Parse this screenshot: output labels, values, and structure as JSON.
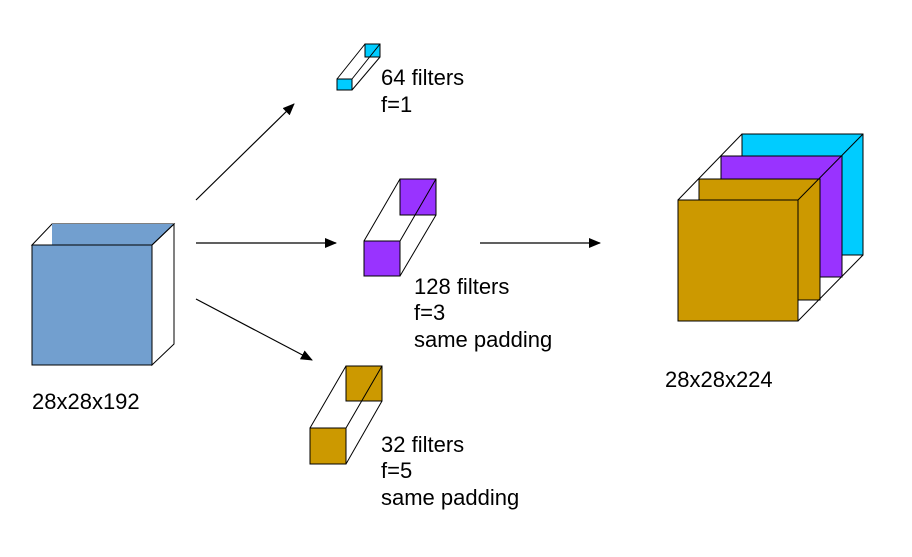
{
  "colors": {
    "input_block": "#729fcf",
    "conv1x1": "#00ccff",
    "conv3x3": "#9933ff",
    "conv5x5": "#cc9900",
    "edge": "#000000",
    "background": "#ffffff"
  },
  "input": {
    "label": "28x28x192"
  },
  "branches": {
    "conv1x1": {
      "filters": "64 filters",
      "f": "f=1"
    },
    "conv3x3": {
      "filters": "128 filters",
      "f": "f=3",
      "padding": "same padding"
    },
    "conv5x5": {
      "filters": "32 filters",
      "f": "f=5",
      "padding": "same padding"
    }
  },
  "output": {
    "label": "28x28x224"
  }
}
